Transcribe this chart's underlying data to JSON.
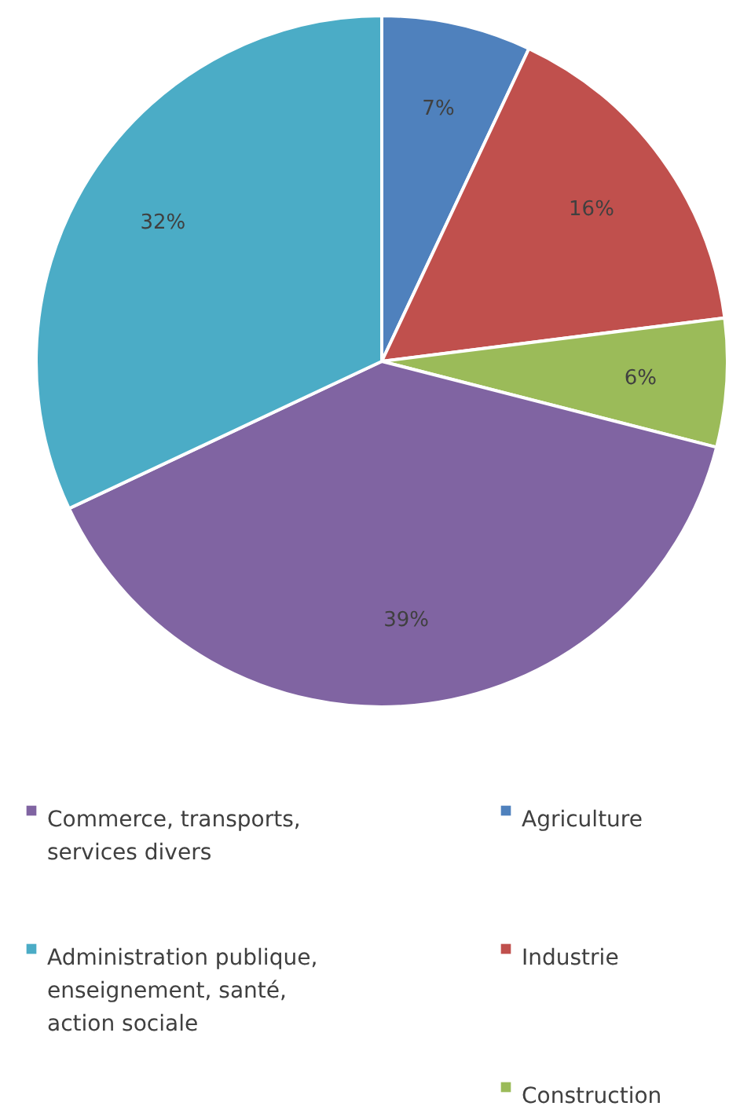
{
  "chart_data": {
    "type": "pie",
    "categories": [
      "Agriculture",
      "Industrie",
      "Construction",
      "Commerce, transports, services divers",
      "Administration publique, enseignement, santé, action sociale"
    ],
    "values": [
      7,
      16,
      6,
      39,
      32
    ],
    "colors": [
      "#4f81bd",
      "#c0504d",
      "#9bbb59",
      "#8064a2",
      "#4bacc6"
    ],
    "value_labels": [
      "7%",
      "16%",
      "6%",
      "39%",
      "32%"
    ],
    "legend": "bottom"
  }
}
